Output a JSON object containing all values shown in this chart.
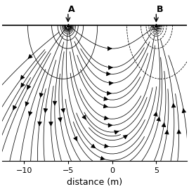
{
  "xlabel": "distance (m)",
  "xlim": [
    -12.5,
    8.5
  ],
  "ylim": [
    -10.5,
    1.8
  ],
  "electrode_A_x": -5,
  "electrode_B_x": 5,
  "electrode_y": 0,
  "background_color": "#ffffff",
  "line_color": "#000000",
  "label_A": "A",
  "label_B": "B",
  "xticks": [
    -10,
    -5,
    0,
    5
  ],
  "surface_y": 0
}
